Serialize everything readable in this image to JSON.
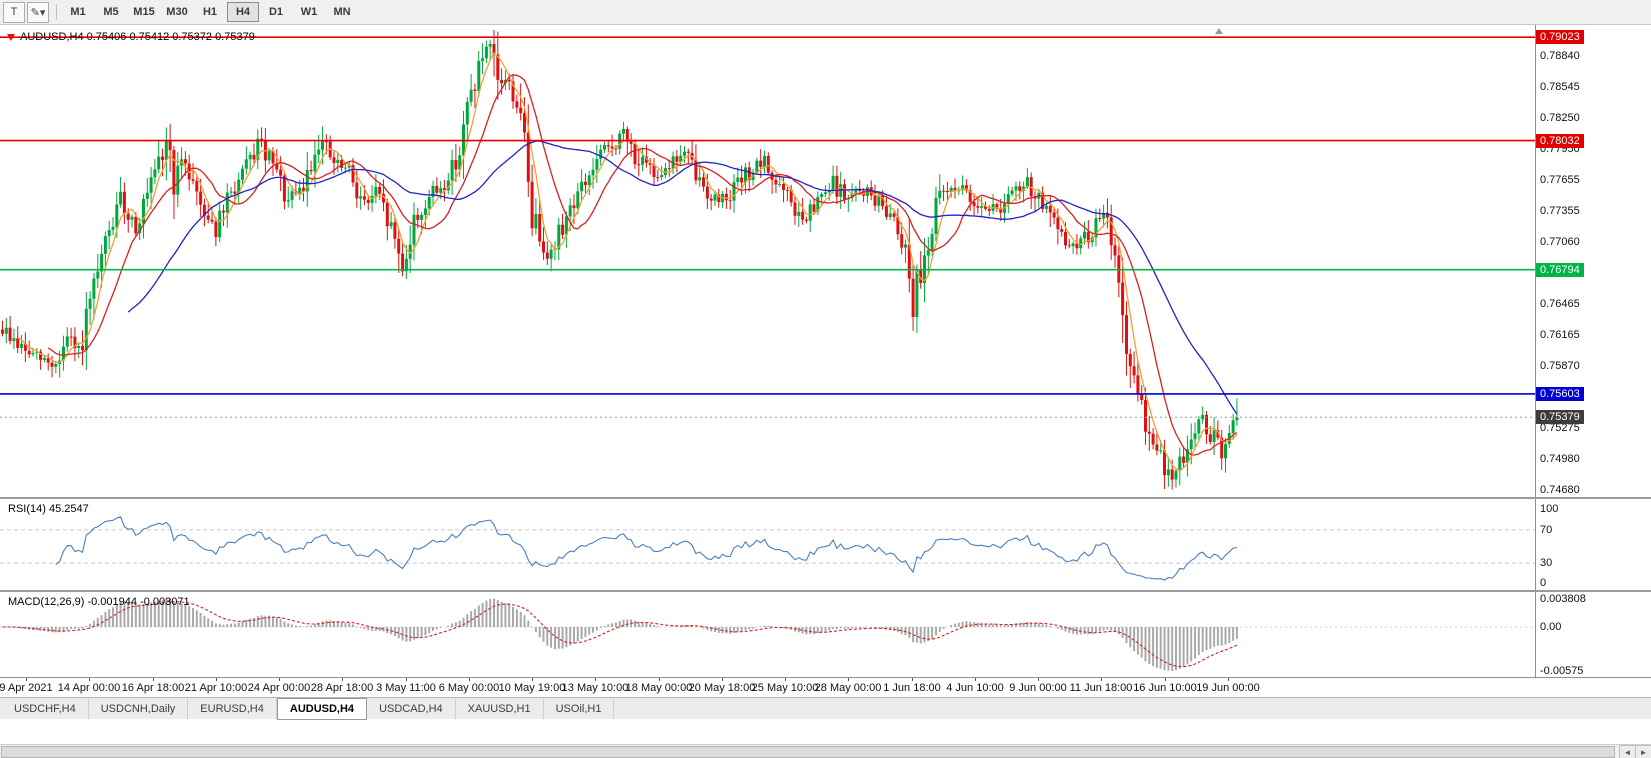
{
  "toolbar": {
    "left_buttons": [
      {
        "name": "templates-button",
        "glyph": "T"
      },
      {
        "name": "objects-dropdown-button",
        "glyph": "✎▾"
      }
    ],
    "timeframes": [
      {
        "label": "M1",
        "active": false
      },
      {
        "label": "M5",
        "active": false
      },
      {
        "label": "M15",
        "active": false
      },
      {
        "label": "M30",
        "active": false
      },
      {
        "label": "H1",
        "active": false
      },
      {
        "label": "H4",
        "active": true
      },
      {
        "label": "D1",
        "active": false
      },
      {
        "label": "W1",
        "active": false
      },
      {
        "label": "MN",
        "active": false
      }
    ]
  },
  "chart_header": {
    "ohlc_line": "AUDUSD,H4 0.75406 0.75412 0.75372 0.75379"
  },
  "indicators": {
    "rsi": {
      "label": "RSI(14) 45.2547",
      "axis_labels": [
        "100",
        "70",
        "30",
        "0"
      ]
    },
    "macd": {
      "label": "MACD(12,26,9) -0.001944 -0.003071",
      "axis_labels": [
        "0.003808",
        "0.00",
        "-0.00575"
      ]
    }
  },
  "tabs": [
    {
      "label": "USDCHF,H4",
      "active": false
    },
    {
      "label": "USDCNH,Daily",
      "active": false
    },
    {
      "label": "EURUSD,H4",
      "active": false
    },
    {
      "label": "AUDUSD,H4",
      "active": true
    },
    {
      "label": "USDCAD,H4",
      "active": false
    },
    {
      "label": "XAUUSD,H1",
      "active": false
    },
    {
      "label": "USOil,H1",
      "active": false
    }
  ],
  "scrollbar": {
    "left_arrow": "◄",
    "right_arrow": "►"
  },
  "chart_data": {
    "type": "candlestick",
    "symbol": "AUDUSD",
    "timeframe": "H4",
    "last_ohlc": {
      "open": 0.75406,
      "high": 0.75412,
      "low": 0.75372,
      "close": 0.75379
    },
    "price_top": 0.7914,
    "price_bottom": 0.74615,
    "price_axis_ticks": [
      "0.78840",
      "0.78545",
      "0.78250",
      "0.77950",
      "0.77655",
      "0.77355",
      "0.77060",
      "0.76465",
      "0.76165",
      "0.75870",
      "0.75275",
      "0.74980",
      "0.74680"
    ],
    "time_axis_ticks": [
      "9 Apr 2021",
      "14 Apr 00:00",
      "16 Apr 18:00",
      "21 Apr 10:00",
      "24 Apr 00:00",
      "28 Apr 18:00",
      "3 May 11:00",
      "6 May 00:00",
      "10 May 19:00",
      "13 May 10:00",
      "18 May 00:00",
      "20 May 18:00",
      "25 May 10:00",
      "28 May 00:00",
      "1 Jun 18:00",
      "4 Jun 10:00",
      "9 Jun 00:00",
      "11 Jun 18:00",
      "16 Jun 10:00",
      "19 Jun 00:00"
    ],
    "levels": [
      {
        "label": "0.79023",
        "price": 0.79023,
        "color": "#e00000"
      },
      {
        "label": "0.78032",
        "price": 0.78032,
        "color": "#e00000"
      },
      {
        "label": "0.76794",
        "price": 0.76794,
        "color": "#00b44a"
      },
      {
        "label": "0.75603",
        "price": 0.75603,
        "color": "#0000d0"
      }
    ],
    "current_price": {
      "label": "0.75379",
      "price": 0.75379,
      "color": "#3c3c3c"
    },
    "candle_count": 325,
    "price_path_anchors": [
      [
        0,
        0.7622
      ],
      [
        6,
        0.7601
      ],
      [
        10,
        0.7593
      ],
      [
        14,
        0.7588
      ],
      [
        17,
        0.7612
      ],
      [
        20,
        0.7599
      ],
      [
        24,
        0.7658
      ],
      [
        28,
        0.7716
      ],
      [
        31,
        0.7744
      ],
      [
        35,
        0.7722
      ],
      [
        39,
        0.7758
      ],
      [
        42,
        0.7788
      ],
      [
        43,
        0.7806
      ],
      [
        45,
        0.7766
      ],
      [
        48,
        0.7784
      ],
      [
        52,
        0.7744
      ],
      [
        56,
        0.7718
      ],
      [
        60,
        0.7752
      ],
      [
        64,
        0.7776
      ],
      [
        67,
        0.78
      ],
      [
        71,
        0.7779
      ],
      [
        75,
        0.7743
      ],
      [
        79,
        0.7757
      ],
      [
        83,
        0.7807
      ],
      [
        87,
        0.7781
      ],
      [
        91,
        0.7773
      ],
      [
        95,
        0.7741
      ],
      [
        98,
        0.7753
      ],
      [
        102,
        0.7719
      ],
      [
        105,
        0.7683
      ],
      [
        108,
        0.7723
      ],
      [
        112,
        0.7749
      ],
      [
        116,
        0.7761
      ],
      [
        120,
        0.7793
      ],
      [
        123,
        0.7849
      ],
      [
        126,
        0.7883
      ],
      [
        128,
        0.7889
      ],
      [
        130,
        0.7856
      ],
      [
        132,
        0.7863
      ],
      [
        135,
        0.7839
      ],
      [
        137,
        0.7801
      ],
      [
        139,
        0.7733
      ],
      [
        142,
        0.7706
      ],
      [
        144,
        0.7693
      ],
      [
        147,
        0.7723
      ],
      [
        150,
        0.7746
      ],
      [
        154,
        0.7769
      ],
      [
        157,
        0.7789
      ],
      [
        161,
        0.7801
      ],
      [
        163,
        0.7809
      ],
      [
        167,
        0.7783
      ],
      [
        171,
        0.7771
      ],
      [
        175,
        0.7781
      ],
      [
        179,
        0.7791
      ],
      [
        183,
        0.7763
      ],
      [
        187,
        0.7746
      ],
      [
        191,
        0.7753
      ],
      [
        196,
        0.7773
      ],
      [
        200,
        0.7781
      ],
      [
        203,
        0.7763
      ],
      [
        207,
        0.7743
      ],
      [
        210,
        0.7723
      ],
      [
        214,
        0.7743
      ],
      [
        218,
        0.7761
      ],
      [
        222,
        0.7747
      ],
      [
        226,
        0.7756
      ],
      [
        230,
        0.7743
      ],
      [
        234,
        0.7731
      ],
      [
        237,
        0.7701
      ],
      [
        239,
        0.7653
      ],
      [
        242,
        0.7693
      ],
      [
        246,
        0.7749
      ],
      [
        250,
        0.7761
      ],
      [
        254,
        0.7747
      ],
      [
        258,
        0.7741
      ],
      [
        261,
        0.7737
      ],
      [
        265,
        0.7751
      ],
      [
        269,
        0.7761
      ],
      [
        273,
        0.7743
      ],
      [
        277,
        0.7713
      ],
      [
        281,
        0.7701
      ],
      [
        285,
        0.7713
      ],
      [
        289,
        0.7731
      ],
      [
        292,
        0.7701
      ],
      [
        294,
        0.7623
      ],
      [
        297,
        0.7563
      ],
      [
        299,
        0.7546
      ],
      [
        302,
        0.7513
      ],
      [
        305,
        0.7491
      ],
      [
        307,
        0.7477
      ],
      [
        310,
        0.7501
      ],
      [
        312,
        0.7521
      ],
      [
        315,
        0.7533
      ],
      [
        318,
        0.7516
      ],
      [
        320,
        0.7501
      ],
      [
        324,
        0.75379
      ]
    ],
    "moving_averages": [
      {
        "period": 5,
        "color": "#f0a030"
      },
      {
        "period": 13,
        "color": "#d82020"
      },
      {
        "period": 34,
        "color": "#2222c8"
      }
    ],
    "rsi": {
      "period": 14,
      "last": 45.2547,
      "color": "#4a7fbf",
      "guide_levels": [
        70,
        30
      ]
    },
    "macd": {
      "fast": 12,
      "slow": 26,
      "signal": 9,
      "main_value": -0.001944,
      "signal_value": -0.003071,
      "hist_color": "#a9a9a9",
      "signal_color": "#d82020"
    },
    "colors": {
      "up": "#00a83c",
      "down": "#e01010"
    }
  }
}
